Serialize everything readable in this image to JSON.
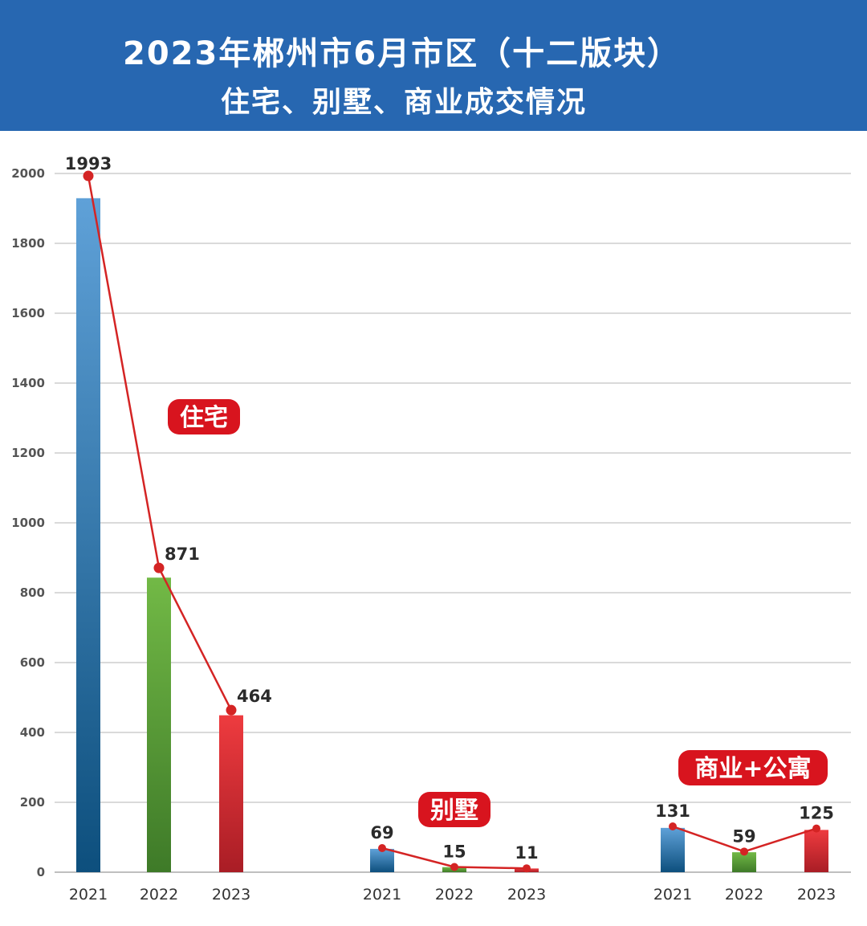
{
  "header": {
    "title_line1": "2023年郴州市6月市区（十二版块）",
    "title_line2": "住宅、别墅、商业成交情况"
  },
  "colors": {
    "header_bg": "#2767b1",
    "bar_2021": "#3f86c4",
    "bar_2022": "#62a73a",
    "bar_2023": "#e0363a",
    "trend_line": "#d42424",
    "badge_bg": "#d8141e"
  },
  "chart_data": {
    "type": "bar",
    "ylim": [
      0,
      2000
    ],
    "yticks": [
      0,
      200,
      400,
      600,
      800,
      1000,
      1200,
      1400,
      1600,
      1800,
      2000
    ],
    "grid": true,
    "trend_lines": true,
    "groups": [
      {
        "name": "住宅",
        "categories": [
          "2021",
          "2022",
          "2023"
        ],
        "values": [
          1993,
          871,
          464
        ]
      },
      {
        "name": "别墅",
        "categories": [
          "2021",
          "2022",
          "2023"
        ],
        "values": [
          69,
          15,
          11
        ]
      },
      {
        "name": "商业+公寓",
        "categories": [
          "2021",
          "2022",
          "2023"
        ],
        "values": [
          131,
          59,
          125
        ]
      }
    ]
  }
}
